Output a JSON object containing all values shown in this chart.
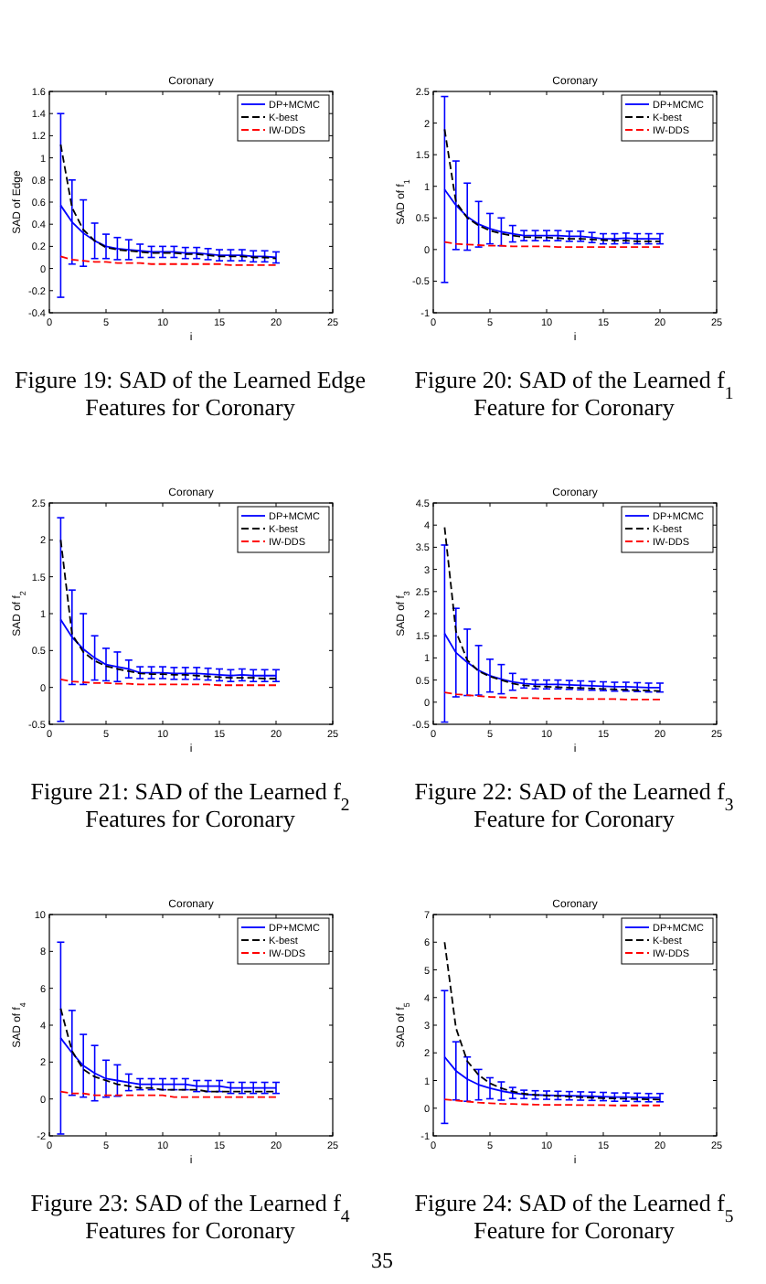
{
  "chart_data": [
    {
      "type": "line",
      "title": "Coronary",
      "xlabel": "i",
      "ylabel": "SAD of Edge",
      "x": [
        1,
        2,
        3,
        4,
        5,
        6,
        7,
        8,
        9,
        10,
        11,
        12,
        13,
        14,
        15,
        16,
        17,
        18,
        19,
        20
      ],
      "xlim": [
        0,
        25
      ],
      "xticks": [
        0,
        5,
        10,
        15,
        20,
        25
      ],
      "ylim": [
        -0.4,
        1.6
      ],
      "yticks": [
        -0.4,
        -0.2,
        0,
        0.2,
        0.4,
        0.6,
        0.8,
        1,
        1.2,
        1.4,
        1.6
      ],
      "legend": "top right",
      "grid": false,
      "annotations": [
        "Figure 19: SAD of the Learned Edge Features for Coronary"
      ],
      "series": [
        {
          "name": "DP+MCMC",
          "color": "#0000ff",
          "line_style": "solid",
          "values": [
            0.57,
            0.42,
            0.32,
            0.25,
            0.2,
            0.18,
            0.17,
            0.16,
            0.15,
            0.15,
            0.15,
            0.14,
            0.14,
            0.13,
            0.12,
            0.12,
            0.12,
            0.11,
            0.11,
            0.1
          ],
          "errors": [
            0.83,
            0.38,
            0.3,
            0.16,
            0.11,
            0.1,
            0.09,
            0.06,
            0.05,
            0.05,
            0.05,
            0.05,
            0.05,
            0.05,
            0.05,
            0.05,
            0.05,
            0.05,
            0.05,
            0.05
          ]
        },
        {
          "name": "K-best",
          "color": "#000000",
          "line_style": "dashed",
          "values": [
            1.12,
            0.55,
            0.35,
            0.25,
            0.19,
            0.17,
            0.16,
            0.15,
            0.14,
            0.14,
            0.14,
            0.13,
            0.13,
            0.12,
            0.11,
            0.11,
            0.11,
            0.1,
            0.1,
            0.09
          ]
        },
        {
          "name": "IW-DDS",
          "color": "#ff0000",
          "line_style": "dashed",
          "values": [
            0.11,
            0.08,
            0.07,
            0.06,
            0.06,
            0.05,
            0.05,
            0.05,
            0.04,
            0.04,
            0.04,
            0.04,
            0.04,
            0.04,
            0.04,
            0.03,
            0.03,
            0.03,
            0.03,
            0.03
          ]
        }
      ]
    },
    {
      "type": "line",
      "title": "Coronary",
      "xlabel": "i",
      "ylabel": "SAD of f$_{1}$",
      "x": [
        1,
        2,
        3,
        4,
        5,
        6,
        7,
        8,
        9,
        10,
        11,
        12,
        13,
        14,
        15,
        16,
        17,
        18,
        19,
        20
      ],
      "xlim": [
        0,
        25
      ],
      "xticks": [
        0,
        5,
        10,
        15,
        20,
        25
      ],
      "ylim": [
        -1,
        2.5
      ],
      "yticks": [
        -1,
        -0.5,
        0,
        0.5,
        1,
        1.5,
        2,
        2.5
      ],
      "legend": "top right",
      "grid": false,
      "annotations": [
        "Figure 20: SAD of the Learned f$_{1}$ Feature for Coronary"
      ],
      "series": [
        {
          "name": "DP+MCMC",
          "color": "#0000ff",
          "line_style": "solid",
          "values": [
            0.95,
            0.7,
            0.52,
            0.4,
            0.33,
            0.28,
            0.25,
            0.22,
            0.22,
            0.22,
            0.22,
            0.21,
            0.21,
            0.19,
            0.17,
            0.17,
            0.18,
            0.17,
            0.17,
            0.17
          ],
          "errors": [
            1.47,
            0.7,
            0.53,
            0.36,
            0.24,
            0.22,
            0.13,
            0.08,
            0.08,
            0.08,
            0.08,
            0.08,
            0.08,
            0.08,
            0.08,
            0.08,
            0.08,
            0.08,
            0.08,
            0.08
          ]
        },
        {
          "name": "K-best",
          "color": "#000000",
          "line_style": "dashed",
          "values": [
            1.9,
            0.75,
            0.5,
            0.38,
            0.3,
            0.25,
            0.22,
            0.2,
            0.19,
            0.19,
            0.18,
            0.17,
            0.17,
            0.16,
            0.15,
            0.14,
            0.14,
            0.13,
            0.13,
            0.13
          ]
        },
        {
          "name": "IW-DDS",
          "color": "#ff0000",
          "line_style": "dashed",
          "values": [
            0.12,
            0.09,
            0.08,
            0.07,
            0.06,
            0.06,
            0.05,
            0.05,
            0.05,
            0.05,
            0.04,
            0.04,
            0.04,
            0.04,
            0.04,
            0.04,
            0.04,
            0.04,
            0.04,
            0.04
          ]
        }
      ]
    },
    {
      "type": "line",
      "title": "Coronary",
      "xlabel": "i",
      "ylabel": "SAD of f$_{2}$",
      "x": [
        1,
        2,
        3,
        4,
        5,
        6,
        7,
        8,
        9,
        10,
        11,
        12,
        13,
        14,
        15,
        16,
        17,
        18,
        19,
        20
      ],
      "xlim": [
        0,
        25
      ],
      "xticks": [
        0,
        5,
        10,
        15,
        20,
        25
      ],
      "ylim": [
        -0.5,
        2.5
      ],
      "yticks": [
        -0.5,
        0,
        0.5,
        1,
        1.5,
        2,
        2.5
      ],
      "legend": "top right",
      "grid": false,
      "annotations": [
        "Figure 21: SAD of the Learned f$_{2}$ Features for Coronary"
      ],
      "series": [
        {
          "name": "DP+MCMC",
          "color": "#0000ff",
          "line_style": "solid",
          "values": [
            0.92,
            0.68,
            0.52,
            0.4,
            0.31,
            0.28,
            0.25,
            0.2,
            0.2,
            0.2,
            0.19,
            0.19,
            0.19,
            0.18,
            0.17,
            0.16,
            0.17,
            0.16,
            0.16,
            0.16
          ],
          "errors": [
            1.38,
            0.64,
            0.48,
            0.3,
            0.22,
            0.2,
            0.12,
            0.08,
            0.08,
            0.08,
            0.08,
            0.08,
            0.08,
            0.08,
            0.08,
            0.08,
            0.08,
            0.08,
            0.08,
            0.08
          ]
        },
        {
          "name": "K-best",
          "color": "#000000",
          "line_style": "dashed",
          "values": [
            2,
            0.72,
            0.48,
            0.36,
            0.29,
            0.25,
            0.22,
            0.19,
            0.18,
            0.18,
            0.17,
            0.17,
            0.16,
            0.15,
            0.14,
            0.13,
            0.13,
            0.13,
            0.12,
            0.12
          ]
        },
        {
          "name": "IW-DDS",
          "color": "#ff0000",
          "line_style": "dashed",
          "values": [
            0.11,
            0.08,
            0.07,
            0.06,
            0.06,
            0.05,
            0.05,
            0.04,
            0.04,
            0.04,
            0.04,
            0.04,
            0.04,
            0.04,
            0.03,
            0.03,
            0.03,
            0.03,
            0.03,
            0.03
          ]
        }
      ]
    },
    {
      "type": "line",
      "title": "Coronary",
      "xlabel": "i",
      "ylabel": "SAD of f$_{3}$",
      "x": [
        1,
        2,
        3,
        4,
        5,
        6,
        7,
        8,
        9,
        10,
        11,
        12,
        13,
        14,
        15,
        16,
        17,
        18,
        19,
        20
      ],
      "xlim": [
        0,
        25
      ],
      "xticks": [
        0,
        5,
        10,
        15,
        20,
        25
      ],
      "ylim": [
        -0.5,
        4.5
      ],
      "yticks": [
        -0.5,
        0,
        0.5,
        1,
        1.5,
        2,
        2.5,
        3,
        3.5,
        4,
        4.5
      ],
      "legend": "top right",
      "grid": false,
      "annotations": [
        "Figure 22: SAD of the Learned f$_{3}$ Feature for Coronary"
      ],
      "series": [
        {
          "name": "DP+MCMC",
          "color": "#0000ff",
          "line_style": "solid",
          "values": [
            1.55,
            1.12,
            0.9,
            0.72,
            0.6,
            0.52,
            0.46,
            0.42,
            0.4,
            0.4,
            0.4,
            0.39,
            0.38,
            0.37,
            0.36,
            0.35,
            0.35,
            0.34,
            0.33,
            0.33
          ],
          "errors": [
            2,
            1,
            0.75,
            0.56,
            0.37,
            0.33,
            0.19,
            0.1,
            0.1,
            0.1,
            0.1,
            0.1,
            0.1,
            0.1,
            0.1,
            0.1,
            0.1,
            0.1,
            0.1,
            0.1
          ]
        },
        {
          "name": "K-best",
          "color": "#000000",
          "line_style": "dashed",
          "values": [
            3.95,
            1.6,
            0.95,
            0.7,
            0.58,
            0.5,
            0.42,
            0.38,
            0.36,
            0.35,
            0.34,
            0.33,
            0.32,
            0.31,
            0.3,
            0.29,
            0.28,
            0.27,
            0.26,
            0.25
          ]
        },
        {
          "name": "IW-DDS",
          "color": "#ff0000",
          "line_style": "dashed",
          "values": [
            0.22,
            0.18,
            0.16,
            0.14,
            0.12,
            0.11,
            0.1,
            0.09,
            0.09,
            0.08,
            0.08,
            0.08,
            0.07,
            0.07,
            0.07,
            0.07,
            0.06,
            0.06,
            0.06,
            0.06
          ]
        }
      ]
    },
    {
      "type": "line",
      "title": "Coronary",
      "xlabel": "i",
      "ylabel": "SAD of f$_{4}$",
      "x": [
        1,
        2,
        3,
        4,
        5,
        6,
        7,
        8,
        9,
        10,
        11,
        12,
        13,
        14,
        15,
        16,
        17,
        18,
        19,
        20
      ],
      "xlim": [
        0,
        25
      ],
      "xticks": [
        0,
        5,
        10,
        15,
        20,
        25
      ],
      "ylim": [
        -2,
        10
      ],
      "yticks": [
        -2,
        0,
        2,
        4,
        6,
        8,
        10
      ],
      "legend": "top right",
      "grid": false,
      "annotations": [
        "Figure 23: SAD of the Learned f$_{4}$ Features for Coronary"
      ],
      "series": [
        {
          "name": "DP+MCMC",
          "color": "#0000ff",
          "line_style": "solid",
          "values": [
            3.3,
            2.5,
            1.8,
            1.4,
            1.1,
            1,
            0.9,
            0.8,
            0.8,
            0.8,
            0.8,
            0.8,
            0.7,
            0.7,
            0.7,
            0.6,
            0.6,
            0.6,
            0.6,
            0.6
          ],
          "errors": [
            5.2,
            2.3,
            1.7,
            1.5,
            1,
            0.85,
            0.45,
            0.3,
            0.3,
            0.3,
            0.3,
            0.3,
            0.3,
            0.3,
            0.3,
            0.3,
            0.3,
            0.3,
            0.3,
            0.3
          ]
        },
        {
          "name": "K-best",
          "color": "#000000",
          "line_style": "dashed",
          "values": [
            4.9,
            2.6,
            1.6,
            1.2,
            1,
            0.8,
            0.7,
            0.6,
            0.6,
            0.5,
            0.5,
            0.5,
            0.5,
            0.4,
            0.4,
            0.4,
            0.4,
            0.4,
            0.4,
            0.4
          ]
        },
        {
          "name": "IW-DDS",
          "color": "#ff0000",
          "line_style": "dashed",
          "values": [
            0.4,
            0.3,
            0.3,
            0.2,
            0.2,
            0.2,
            0.2,
            0.2,
            0.2,
            0.2,
            0.1,
            0.1,
            0.1,
            0.1,
            0.1,
            0.1,
            0.1,
            0.1,
            0.1,
            0.1
          ]
        }
      ]
    },
    {
      "type": "line",
      "title": "Coronary",
      "xlabel": "i",
      "ylabel": "SAD of f$_{5}$",
      "x": [
        1,
        2,
        3,
        4,
        5,
        6,
        7,
        8,
        9,
        10,
        11,
        12,
        13,
        14,
        15,
        16,
        17,
        18,
        19,
        20
      ],
      "xlim": [
        0,
        25
      ],
      "xticks": [
        0,
        5,
        10,
        15,
        20,
        25
      ],
      "ylim": [
        -1,
        7
      ],
      "yticks": [
        -1,
        0,
        1,
        2,
        3,
        4,
        5,
        6,
        7
      ],
      "legend": "top right",
      "grid": false,
      "annotations": [
        "Figure 24: SAD of the Learned f$_{5}$ Feature for Coronary",
        "35"
      ],
      "series": [
        {
          "name": "DP+MCMC",
          "color": "#0000ff",
          "line_style": "solid",
          "values": [
            1.85,
            1.35,
            1.05,
            0.85,
            0.72,
            0.62,
            0.55,
            0.5,
            0.48,
            0.47,
            0.46,
            0.45,
            0.44,
            0.43,
            0.42,
            0.4,
            0.4,
            0.39,
            0.38,
            0.38
          ],
          "errors": [
            2.4,
            1.05,
            0.8,
            0.55,
            0.38,
            0.33,
            0.2,
            0.15,
            0.15,
            0.15,
            0.15,
            0.15,
            0.15,
            0.15,
            0.15,
            0.15,
            0.15,
            0.15,
            0.15,
            0.15
          ]
        },
        {
          "name": "K-best",
          "color": "#000000",
          "line_style": "dashed",
          "values": [
            6,
            2.9,
            1.7,
            1.2,
            0.9,
            0.72,
            0.6,
            0.52,
            0.48,
            0.46,
            0.44,
            0.42,
            0.4,
            0.38,
            0.36,
            0.35,
            0.34,
            0.33,
            0.32,
            0.31
          ]
        },
        {
          "name": "IW-DDS",
          "color": "#ff0000",
          "line_style": "dashed",
          "values": [
            0.32,
            0.28,
            0.24,
            0.2,
            0.18,
            0.16,
            0.15,
            0.14,
            0.13,
            0.12,
            0.12,
            0.12,
            0.11,
            0.11,
            0.11,
            0.1,
            0.1,
            0.1,
            0.1,
            0.1
          ]
        }
      ]
    }
  ]
}
